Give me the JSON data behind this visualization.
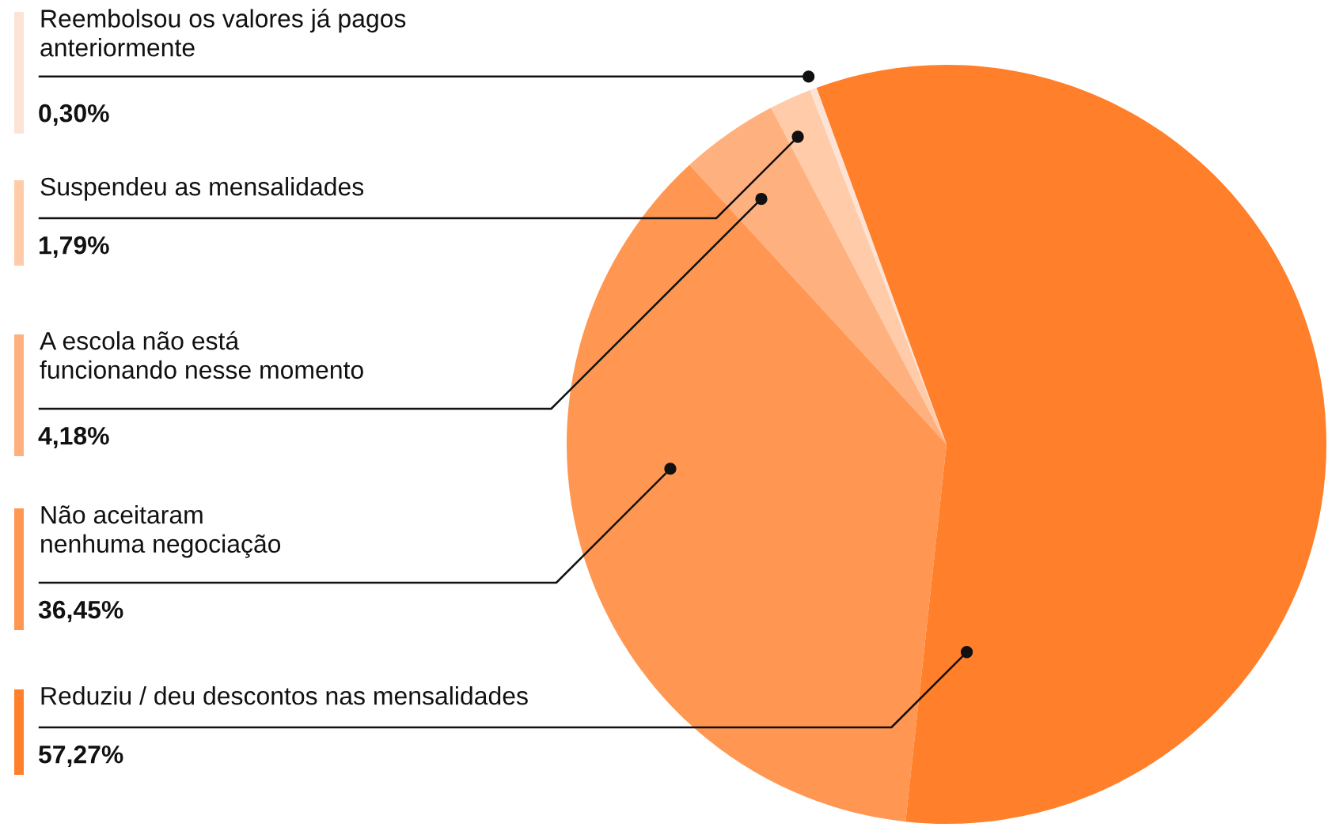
{
  "chart_data": {
    "type": "pie",
    "categories": [
      "Reembolsou os valores já pagos\nanteriormente",
      "Suspendeu as mensalidades",
      "A escola não está\nfuncionando nesse momento",
      "Não aceitaram\nnenhuma negociação",
      "Reduziu / deu descontos nas mensalidades"
    ],
    "values": [
      0.3,
      1.79,
      4.18,
      36.45,
      57.27
    ],
    "value_labels": [
      "0,30%",
      "1,79%",
      "4,18%",
      "36,45%",
      "57,27%"
    ],
    "colors": [
      "#fde3d6",
      "#ffcba8",
      "#ffb07f",
      "#ff9752",
      "#ff7f2a"
    ]
  }
}
